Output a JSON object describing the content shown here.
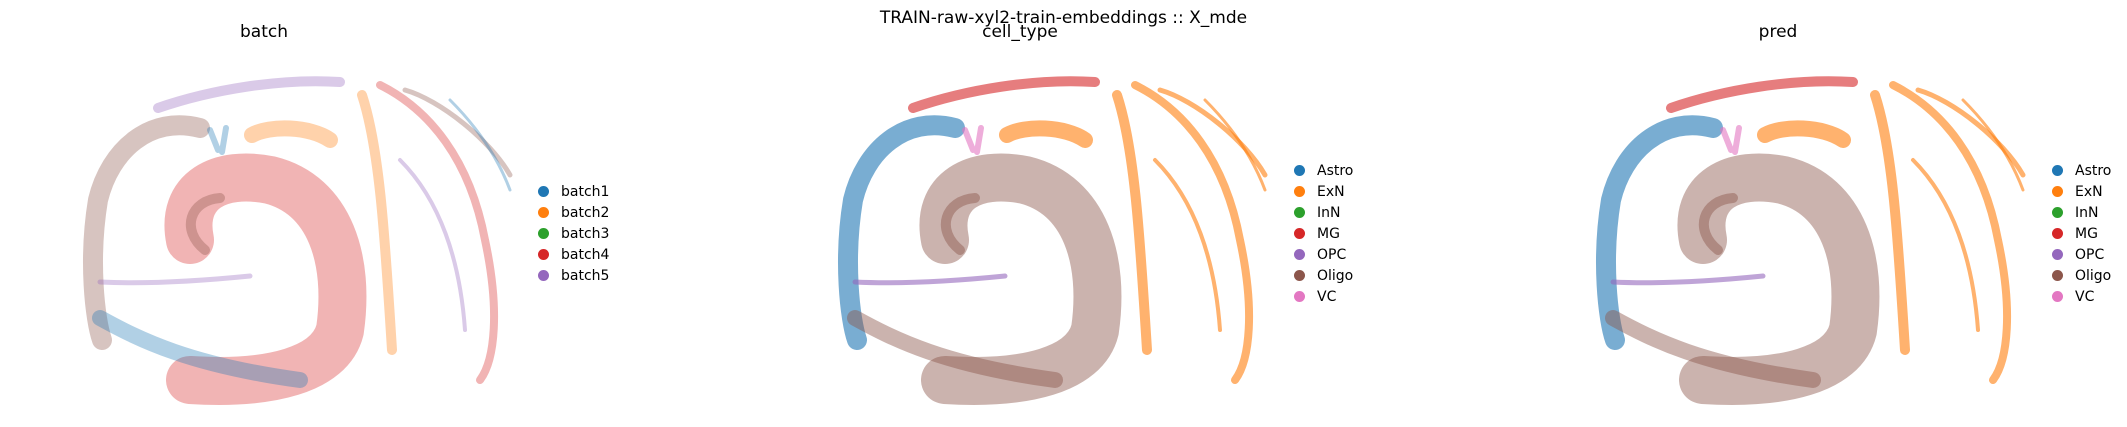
{
  "figure_title": "TRAIN-raw-xyl2-train-embeddings :: X_mde",
  "chart_data": [
    {
      "type": "scatter",
      "title": "batch",
      "legend": [
        {
          "label": "batch1",
          "color": "#1f77b4"
        },
        {
          "label": "batch2",
          "color": "#ff7f0e"
        },
        {
          "label": "batch3",
          "color": "#2ca02c"
        },
        {
          "label": "batch4",
          "color": "#d62728"
        },
        {
          "label": "batch5",
          "color": "#9467bd"
        }
      ],
      "legend_placement": "right",
      "grid": false,
      "axes_visible": false
    },
    {
      "type": "scatter",
      "title": "cell_type",
      "legend": [
        {
          "label": "Astro",
          "color": "#1f77b4"
        },
        {
          "label": "ExN",
          "color": "#ff7f0e"
        },
        {
          "label": "InN",
          "color": "#2ca02c"
        },
        {
          "label": "MG",
          "color": "#d62728"
        },
        {
          "label": "OPC",
          "color": "#9467bd"
        },
        {
          "label": "Oligo",
          "color": "#8c564b"
        },
        {
          "label": "VC",
          "color": "#e377c2"
        }
      ],
      "legend_placement": "right",
      "grid": false,
      "axes_visible": false
    },
    {
      "type": "scatter",
      "title": "pred",
      "legend": [
        {
          "label": "Astro",
          "color": "#1f77b4"
        },
        {
          "label": "ExN",
          "color": "#ff7f0e"
        },
        {
          "label": "InN",
          "color": "#2ca02c"
        },
        {
          "label": "MG",
          "color": "#d62728"
        },
        {
          "label": "OPC",
          "color": "#9467bd"
        },
        {
          "label": "Oligo",
          "color": "#8c564b"
        },
        {
          "label": "VC",
          "color": "#e377c2"
        }
      ],
      "legend_placement": "right",
      "grid": false,
      "axes_visible": false
    }
  ]
}
